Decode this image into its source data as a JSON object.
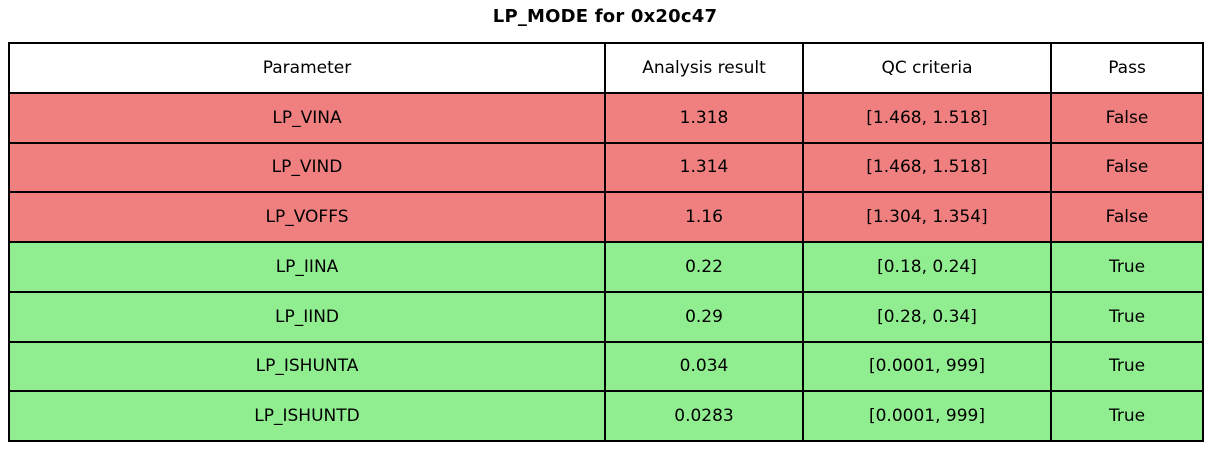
{
  "chart_data": {
    "type": "table",
    "title": "LP_MODE for 0x20c47",
    "columns": [
      "Parameter",
      "Analysis result",
      "QC criteria",
      "Pass"
    ],
    "rows": [
      [
        "LP_VINA",
        "1.318",
        "[1.468, 1.518]",
        "False"
      ],
      [
        "LP_VIND",
        "1.314",
        "[1.468, 1.518]",
        "False"
      ],
      [
        "LP_VOFFS",
        "1.16",
        "[1.304, 1.354]",
        "False"
      ],
      [
        "LP_IINA",
        "0.22",
        "[0.18, 0.24]",
        "True"
      ],
      [
        "LP_IIND",
        "0.29",
        "[0.28, 0.34]",
        "True"
      ],
      [
        "LP_ISHUNTA",
        "0.034",
        "[0.0001, 999]",
        "True"
      ],
      [
        "LP_ISHUNTD",
        "0.0283",
        "[0.0001, 999]",
        "True"
      ]
    ],
    "row_status": [
      "fail",
      "fail",
      "fail",
      "pass",
      "pass",
      "pass",
      "pass"
    ],
    "colors": {
      "fail_row": "#f08080",
      "pass_row": "#90ee90",
      "border": "#000000",
      "header_bg": "#ffffff",
      "text": "#000000"
    },
    "layout": {
      "header_row": true,
      "grid": "all-borders",
      "title_position": "top-center"
    }
  }
}
